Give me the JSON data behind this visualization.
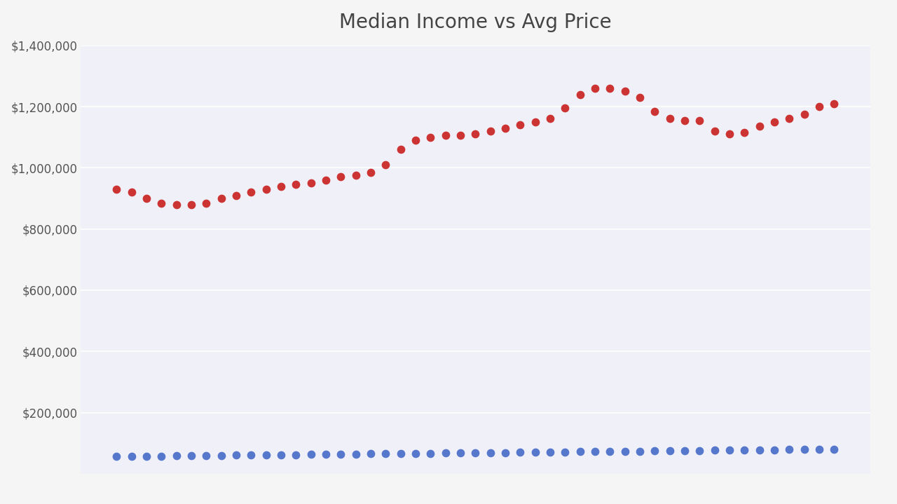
{
  "title": "Median Income vs Avg Price",
  "title_fontsize": 20,
  "background_color": "#f5f5f5",
  "plot_background": "#f0f0f8",
  "grid_color": "#ffffff",
  "ylim": [
    0,
    1400000
  ],
  "yticks": [
    200000,
    400000,
    600000,
    800000,
    1000000,
    1200000,
    1400000
  ],
  "avg_price": [
    930000,
    920000,
    900000,
    885000,
    880000,
    880000,
    885000,
    900000,
    910000,
    920000,
    930000,
    940000,
    945000,
    950000,
    960000,
    970000,
    975000,
    985000,
    1010000,
    1060000,
    1090000,
    1100000,
    1105000,
    1105000,
    1110000,
    1120000,
    1130000,
    1140000,
    1150000,
    1160000,
    1195000,
    1240000,
    1260000,
    1260000,
    1250000,
    1230000,
    1185000,
    1160000,
    1155000,
    1155000,
    1120000,
    1110000,
    1115000,
    1135000,
    1150000,
    1160000,
    1175000,
    1200000,
    1210000
  ],
  "median_income": [
    56000,
    57000,
    57500,
    58000,
    58500,
    59000,
    59500,
    60000,
    60500,
    61000,
    61500,
    62000,
    62500,
    63000,
    63500,
    64000,
    64500,
    65000,
    65500,
    66000,
    66500,
    67000,
    67500,
    68000,
    68500,
    69000,
    69500,
    70000,
    70500,
    71000,
    71500,
    72000,
    72500,
    73000,
    73500,
    74000,
    74500,
    75000,
    75500,
    76000,
    76500,
    77000,
    77500,
    78000,
    78500,
    79000,
    79500,
    80000,
    80500
  ],
  "price_color": "#cc3333",
  "income_color": "#5577cc",
  "dot_size": 55,
  "n_points": 49,
  "title_color": "#444444",
  "tick_color": "#555555",
  "tick_fontsize": 12
}
